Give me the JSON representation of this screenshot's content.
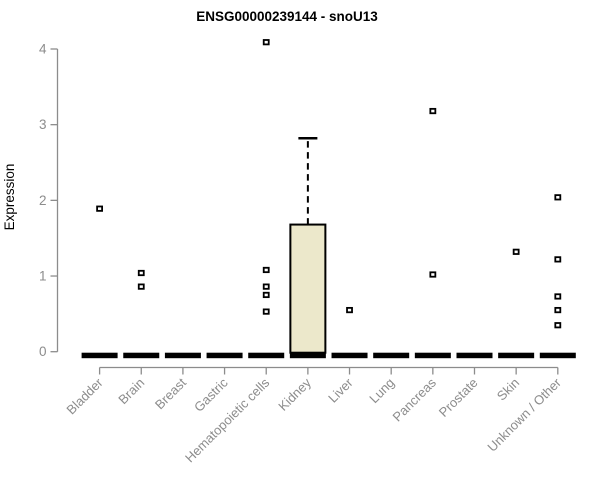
{
  "chart_data": {
    "type": "boxplot",
    "title": "ENSG00000239144 - snoU13",
    "ylabel": "Expression",
    "xlabel": "",
    "ylim": [
      0,
      4
    ],
    "yticks": [
      0,
      1,
      2,
      3,
      4
    ],
    "grid": false,
    "legend": false,
    "categories": [
      "Bladder",
      "Brain",
      "Breast",
      "Gastric",
      "Hematopoietic cells",
      "Kidney",
      "Liver",
      "Lung",
      "Pancreas",
      "Prostate",
      "Skin",
      "Unknown / Other"
    ],
    "series": [
      {
        "category": "Bladder",
        "q1": 0,
        "median": 0,
        "q3": 0,
        "whisker_low": 0,
        "whisker_high": 0,
        "outliers": [
          1.89
        ]
      },
      {
        "category": "Brain",
        "q1": 0,
        "median": 0,
        "q3": 0,
        "whisker_low": 0,
        "whisker_high": 0,
        "outliers": [
          1.04,
          0.86
        ]
      },
      {
        "category": "Breast",
        "q1": 0,
        "median": 0,
        "q3": 0,
        "whisker_low": 0,
        "whisker_high": 0,
        "outliers": []
      },
      {
        "category": "Gastric",
        "q1": 0,
        "median": 0,
        "q3": 0,
        "whisker_low": 0,
        "whisker_high": 0,
        "outliers": []
      },
      {
        "category": "Hematopoietic cells",
        "q1": 0,
        "median": 0,
        "q3": 0,
        "whisker_low": 0,
        "whisker_high": 0,
        "outliers": [
          4.09,
          1.08,
          0.86,
          0.75,
          0.53
        ]
      },
      {
        "category": "Kidney",
        "q1": 0,
        "median": 0,
        "q3": 1.68,
        "whisker_low": 0,
        "whisker_high": 2.82,
        "outliers": []
      },
      {
        "category": "Liver",
        "q1": 0,
        "median": 0,
        "q3": 0,
        "whisker_low": 0,
        "whisker_high": 0,
        "outliers": [
          0.55
        ]
      },
      {
        "category": "Lung",
        "q1": 0,
        "median": 0,
        "q3": 0,
        "whisker_low": 0,
        "whisker_high": 0,
        "outliers": []
      },
      {
        "category": "Pancreas",
        "q1": 0,
        "median": 0,
        "q3": 0,
        "whisker_low": 0,
        "whisker_high": 0,
        "outliers": [
          3.18,
          1.02
        ]
      },
      {
        "category": "Prostate",
        "q1": 0,
        "median": 0,
        "q3": 0,
        "whisker_low": 0,
        "whisker_high": 0,
        "outliers": []
      },
      {
        "category": "Skin",
        "q1": 0,
        "median": 0,
        "q3": 0,
        "whisker_low": 0,
        "whisker_high": 0,
        "outliers": [
          1.32
        ]
      },
      {
        "category": "Unknown / Other",
        "q1": 0,
        "median": 0,
        "q3": 0,
        "whisker_low": 0,
        "whisker_high": 0,
        "outliers": [
          2.04,
          1.22,
          0.73,
          0.55,
          0.35
        ]
      }
    ],
    "colors": {
      "box_fill": "#ece8cb",
      "box_stroke": "#000000",
      "median": "#000000",
      "outlier_stroke": "#000000",
      "outlier_fill": "#ffffff",
      "axis": "#8c8c8c",
      "tick_text": "#8c8c8c",
      "title_text": "#000000"
    }
  }
}
